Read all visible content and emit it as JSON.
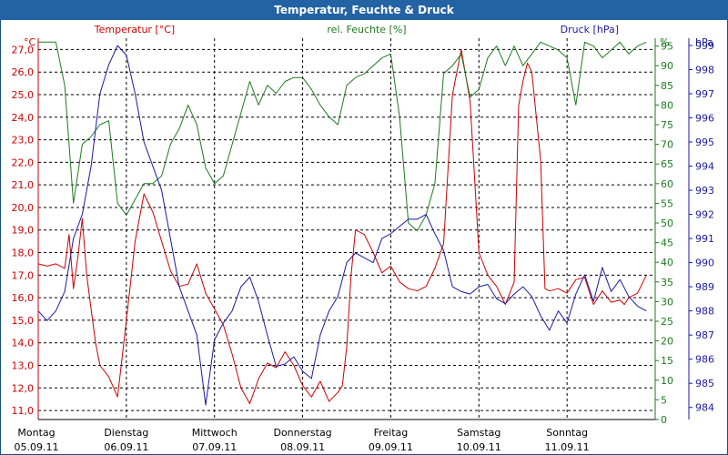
{
  "window": {
    "title": "Temperatur, Feuchte & Druck"
  },
  "colors": {
    "title_bg": "#2463a3",
    "temperature": "#cc0000",
    "humidity": "#1e7a1e",
    "pressure": "#1a1aa0",
    "grid": "#000000"
  },
  "chart_data": {
    "type": "line",
    "title": "Temperatur, Feuchte & Druck",
    "x_range": [
      0,
      7
    ],
    "days": [
      {
        "label": "Montag",
        "date": "05.09.11",
        "pos": 0
      },
      {
        "label": "Dienstag",
        "date": "06.09.11",
        "pos": 1
      },
      {
        "label": "Mittwoch",
        "date": "07.09.11",
        "pos": 2
      },
      {
        "label": "Donnerstag",
        "date": "08.09.11",
        "pos": 3
      },
      {
        "label": "Freitag",
        "date": "09.09.11",
        "pos": 4
      },
      {
        "label": "Samstag",
        "date": "10.09.11",
        "pos": 5
      },
      {
        "label": "Sonntag",
        "date": "11.09.11",
        "pos": 6
      }
    ],
    "axes": {
      "temperature": {
        "label": "Temperatur [°C]",
        "unit": "°C",
        "min": 10.6,
        "max": 27.5,
        "ticks": [
          "11,0",
          "12,0",
          "13,0",
          "14,0",
          "15,0",
          "16,0",
          "17,0",
          "18,0",
          "19,0",
          "20,0",
          "21,0",
          "22,0",
          "23,0",
          "24,0",
          "25,0",
          "26,0",
          "27,0"
        ],
        "tick_values": [
          11,
          12,
          13,
          14,
          15,
          16,
          17,
          18,
          19,
          20,
          21,
          22,
          23,
          24,
          25,
          26,
          27
        ]
      },
      "humidity": {
        "label": "rel. Feuchte [%]",
        "unit": "%",
        "min": 0,
        "max": 97,
        "ticks": [
          "0",
          "5",
          "10",
          "15",
          "20",
          "25",
          "30",
          "35",
          "40",
          "45",
          "50",
          "55",
          "60",
          "65",
          "70",
          "75",
          "80",
          "85",
          "90",
          "95"
        ],
        "tick_values": [
          0,
          5,
          10,
          15,
          20,
          25,
          30,
          35,
          40,
          45,
          50,
          55,
          60,
          65,
          70,
          75,
          80,
          85,
          90,
          95
        ]
      },
      "pressure": {
        "label": "Druck [hPa]",
        "unit": "hPa",
        "min": 983.5,
        "max": 999.3,
        "ticks": [
          "984",
          "985",
          "986",
          "987",
          "988",
          "989",
          "990",
          "991",
          "992",
          "993",
          "994",
          "995",
          "996",
          "997",
          "998",
          "999"
        ],
        "tick_values": [
          984,
          985,
          986,
          987,
          988,
          989,
          990,
          991,
          992,
          993,
          994,
          995,
          996,
          997,
          998,
          999
        ]
      }
    },
    "series": [
      {
        "name": "Temperatur",
        "axis": "temperature",
        "color": "#cc0000",
        "x": [
          0,
          0.1,
          0.2,
          0.3,
          0.35,
          0.4,
          0.45,
          0.5,
          0.55,
          0.6,
          0.65,
          0.7,
          0.8,
          0.9,
          1.0,
          1.1,
          1.2,
          1.3,
          1.4,
          1.5,
          1.6,
          1.7,
          1.8,
          1.9,
          2.0,
          2.1,
          2.2,
          2.3,
          2.4,
          2.5,
          2.6,
          2.7,
          2.8,
          2.9,
          3.0,
          3.1,
          3.2,
          3.3,
          3.4,
          3.45,
          3.5,
          3.55,
          3.6,
          3.7,
          3.8,
          3.9,
          4.0,
          4.1,
          4.2,
          4.3,
          4.4,
          4.5,
          4.6,
          4.7,
          4.8,
          4.9,
          5.0,
          5.1,
          5.2,
          5.3,
          5.4,
          5.45,
          5.5,
          5.55,
          5.6,
          5.7,
          5.75,
          5.8,
          5.9,
          6.0,
          6.1,
          6.2,
          6.3,
          6.4,
          6.5,
          6.6,
          6.65,
          6.7,
          6.8,
          6.9
        ],
        "values": [
          17.5,
          17.4,
          17.5,
          17.3,
          18.8,
          16.4,
          17.8,
          19.5,
          17.0,
          15.5,
          14.0,
          13.0,
          12.5,
          11.6,
          15.0,
          18.5,
          20.6,
          19.8,
          18.5,
          17.2,
          16.5,
          16.6,
          17.5,
          16.2,
          15.5,
          14.8,
          13.5,
          12.0,
          11.3,
          12.4,
          13.1,
          12.9,
          13.6,
          13.0,
          12.1,
          11.6,
          12.3,
          11.4,
          11.8,
          12.1,
          13.8,
          17.0,
          19.0,
          18.8,
          18.0,
          17.1,
          17.4,
          16.7,
          16.4,
          16.3,
          16.5,
          17.3,
          18.4,
          25.0,
          27.0,
          24.7,
          18.0,
          17.0,
          16.5,
          15.7,
          16.7,
          24.5,
          25.6,
          26.4,
          26.0,
          22.1,
          16.4,
          16.3,
          16.4,
          16.2,
          16.8,
          16.9,
          15.7,
          16.3,
          15.8,
          15.9,
          15.7,
          16.0,
          16.2,
          17.0
        ]
      },
      {
        "name": "rel. Feuchte",
        "axis": "humidity",
        "color": "#1e7a1e",
        "x": [
          0,
          0.1,
          0.2,
          0.3,
          0.4,
          0.5,
          0.6,
          0.7,
          0.8,
          0.9,
          1.0,
          1.1,
          1.2,
          1.3,
          1.4,
          1.5,
          1.6,
          1.7,
          1.8,
          1.9,
          2.0,
          2.1,
          2.2,
          2.3,
          2.4,
          2.5,
          2.6,
          2.7,
          2.8,
          2.9,
          3.0,
          3.1,
          3.2,
          3.3,
          3.4,
          3.5,
          3.6,
          3.7,
          3.8,
          3.9,
          4.0,
          4.1,
          4.2,
          4.3,
          4.4,
          4.5,
          4.6,
          4.7,
          4.8,
          4.9,
          5.0,
          5.1,
          5.2,
          5.3,
          5.4,
          5.5,
          5.6,
          5.7,
          5.8,
          5.9,
          6.0,
          6.1,
          6.2,
          6.3,
          6.4,
          6.5,
          6.6,
          6.7,
          6.8,
          6.9
        ],
        "values": [
          96,
          96,
          96,
          85,
          55,
          70,
          72,
          75,
          76,
          55,
          52,
          56,
          60,
          60,
          62,
          70,
          74,
          80,
          75,
          64,
          60,
          62,
          70,
          78,
          86,
          80,
          85,
          83,
          86,
          87,
          87,
          84,
          80,
          77,
          75,
          85,
          87,
          88,
          90,
          92,
          93,
          77,
          50,
          48,
          52,
          60,
          88,
          90,
          93,
          82,
          84,
          92,
          95,
          90,
          95,
          90,
          93,
          96,
          95,
          94,
          92,
          80,
          96,
          95,
          92,
          94,
          96,
          93,
          95,
          96
        ]
      },
      {
        "name": "Druck",
        "axis": "pressure",
        "color": "#1a1aa0",
        "x": [
          0,
          0.1,
          0.2,
          0.3,
          0.4,
          0.5,
          0.6,
          0.7,
          0.8,
          0.9,
          1.0,
          1.1,
          1.2,
          1.3,
          1.4,
          1.5,
          1.6,
          1.7,
          1.8,
          1.9,
          2.0,
          2.1,
          2.2,
          2.3,
          2.4,
          2.5,
          2.6,
          2.7,
          2.8,
          2.9,
          3.0,
          3.1,
          3.2,
          3.3,
          3.4,
          3.5,
          3.6,
          3.7,
          3.8,
          3.9,
          4.0,
          4.1,
          4.2,
          4.3,
          4.4,
          4.5,
          4.6,
          4.7,
          4.8,
          4.9,
          5.0,
          5.1,
          5.2,
          5.3,
          5.4,
          5.5,
          5.6,
          5.7,
          5.8,
          5.9,
          6.0,
          6.1,
          6.2,
          6.3,
          6.4,
          6.5,
          6.6,
          6.7,
          6.8,
          6.9
        ],
        "values": [
          988,
          987.6,
          988,
          988.8,
          991,
          992,
          994,
          997,
          998.2,
          999,
          998.6,
          997,
          995,
          994,
          993,
          991,
          989,
          988,
          987,
          984.1,
          986.8,
          987.5,
          988,
          989,
          989.4,
          988.4,
          987,
          985.7,
          985.8,
          986.1,
          985.5,
          985.2,
          987,
          988,
          988.6,
          990,
          990.4,
          990.2,
          990,
          991,
          991.2,
          991.5,
          991.8,
          991.8,
          992,
          991.2,
          990.5,
          989,
          988.8,
          988.7,
          989,
          989.1,
          988.5,
          988.3,
          988.7,
          989,
          988.6,
          987.8,
          987.2,
          988,
          987.5,
          988.7,
          989.5,
          988.4,
          989.8,
          988.8,
          989.3,
          988.6,
          988.2,
          988.0
        ]
      }
    ]
  }
}
